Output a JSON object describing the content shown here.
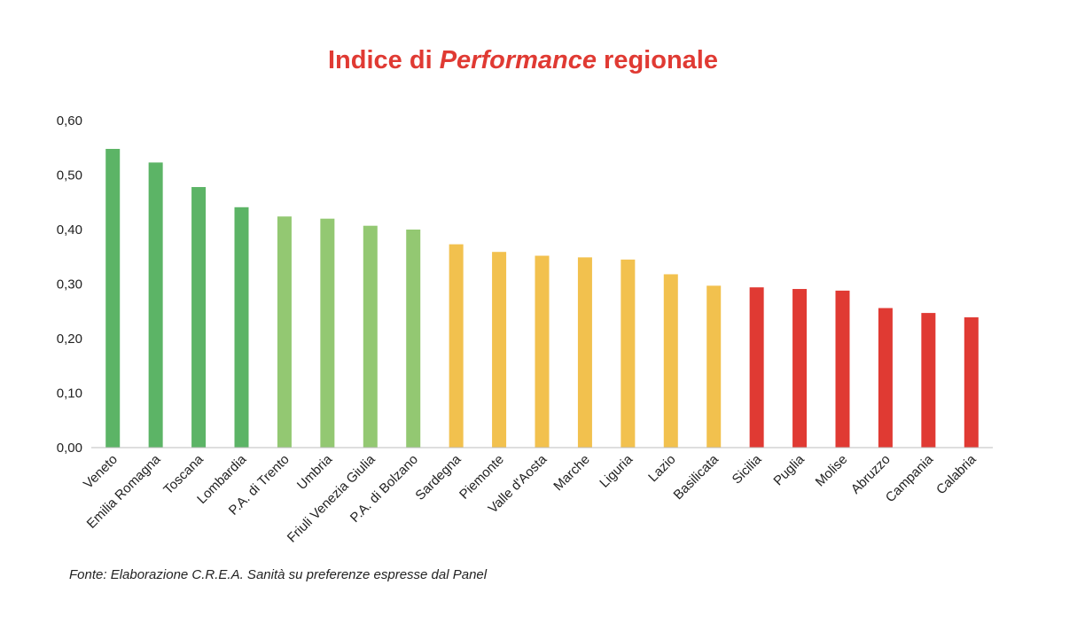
{
  "chart_data": {
    "type": "bar",
    "title_parts": [
      "Indice di ",
      "Performance",
      " regionale"
    ],
    "categories": [
      "Veneto",
      "Emilia Romagna",
      "Toscana",
      "Lombardia",
      "P.A. di Trento",
      "Umbria",
      "Friuli Venezia Giulia",
      "P.A. di Bolzano",
      "Sardegna",
      "Piemonte",
      "Valle d'Aosta",
      "Marche",
      "Liguria",
      "Lazio",
      "Basilicata",
      "Sicilia",
      "Puglia",
      "Molise",
      "Abruzzo",
      "Campania",
      "Calabria"
    ],
    "values": [
      0.548,
      0.523,
      0.478,
      0.441,
      0.424,
      0.42,
      0.407,
      0.4,
      0.373,
      0.359,
      0.352,
      0.349,
      0.345,
      0.318,
      0.297,
      0.294,
      0.291,
      0.288,
      0.256,
      0.247,
      0.239
    ],
    "bar_colors": [
      "#5cb466",
      "#5cb466",
      "#5cb466",
      "#5cb466",
      "#93c872",
      "#93c872",
      "#93c872",
      "#93c872",
      "#f2c14e",
      "#f2c14e",
      "#f2c14e",
      "#f2c14e",
      "#f2c14e",
      "#f2c14e",
      "#f2c14e",
      "#e03a33",
      "#e03a33",
      "#e03a33",
      "#e03a33",
      "#e03a33",
      "#e03a33"
    ],
    "yticks": [
      "0,00",
      "0,10",
      "0,20",
      "0,30",
      "0,40",
      "0,50",
      "0,60"
    ],
    "ylim": [
      0,
      0.6
    ],
    "grid": false,
    "legend": "none",
    "title_color": "#e03a33",
    "source": "Fonte: Elaborazione C.R.E.A. Sanità su preferenze espresse dal Panel"
  }
}
